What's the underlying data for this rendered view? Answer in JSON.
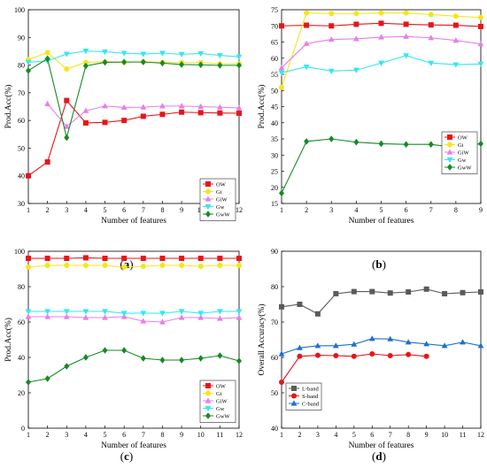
{
  "chart_data": [
    {
      "panel": "a",
      "type": "line",
      "xlabel": "Number of features",
      "ylabel": "Prod.Acc(%)",
      "xlim": [
        1,
        12
      ],
      "ylim": [
        30,
        100
      ],
      "xticks": [
        1,
        2,
        3,
        4,
        5,
        6,
        7,
        8,
        9,
        10,
        11,
        12
      ],
      "yticks": [
        30,
        40,
        50,
        60,
        70,
        80,
        90,
        100
      ],
      "grid": false,
      "legend_position": "bottom-right",
      "x": [
        1,
        2,
        3,
        4,
        5,
        6,
        7,
        8,
        9,
        10,
        11,
        12
      ],
      "series": [
        {
          "name": "OW",
          "color": "#e8141b",
          "marker": "square",
          "values": [
            40.0,
            45.0,
            67.2,
            59.1,
            59.3,
            60.0,
            61.5,
            62.2,
            63.0,
            62.8,
            62.7,
            62.6
          ]
        },
        {
          "name": "Gi",
          "color": "#f5e61b",
          "marker": "circle",
          "values": [
            82.0,
            84.5,
            78.6,
            81.0,
            81.2,
            81.0,
            81.2,
            81.0,
            80.9,
            80.9,
            80.5,
            80.5
          ]
        },
        {
          "name": "GiW",
          "color": "#e67fe8",
          "marker": "triangle-up",
          "values": [
            null,
            66.0,
            57.8,
            63.5,
            65.2,
            64.7,
            64.8,
            65.2,
            65.2,
            65.0,
            64.8,
            64.5
          ]
        },
        {
          "name": "Gw",
          "color": "#33e7f0",
          "marker": "triangle-down",
          "values": [
            81.0,
            81.5,
            84.0,
            85.1,
            84.8,
            84.3,
            84.0,
            84.3,
            83.9,
            84.2,
            83.5,
            83.0
          ]
        },
        {
          "name": "GwW",
          "color": "#158a23",
          "marker": "diamond",
          "values": [
            78.0,
            82.3,
            53.8,
            79.7,
            81.0,
            81.1,
            81.1,
            80.7,
            80.2,
            80.1,
            79.9,
            79.9
          ]
        }
      ]
    },
    {
      "panel": "b",
      "type": "line",
      "xlabel": "Number of features",
      "ylabel": "Prod.Acc(%)",
      "xlim": [
        1,
        9
      ],
      "ylim": [
        15,
        75
      ],
      "xticks": [
        1,
        2,
        3,
        4,
        5,
        6,
        7,
        8,
        9
      ],
      "yticks": [
        15,
        20,
        25,
        30,
        35,
        40,
        45,
        50,
        55,
        60,
        65,
        70,
        75
      ],
      "grid": false,
      "legend_position": "right",
      "x": [
        1,
        2,
        3,
        4,
        5,
        6,
        7,
        8,
        9
      ],
      "series": [
        {
          "name": "OW",
          "color": "#e8141b",
          "marker": "square",
          "values": [
            70.0,
            70.2,
            70.0,
            70.5,
            70.8,
            70.5,
            70.3,
            70.2,
            69.8
          ]
        },
        {
          "name": "Gi",
          "color": "#f5e61b",
          "marker": "circle",
          "values": [
            51.0,
            74.0,
            73.8,
            73.8,
            74.0,
            74.0,
            73.5,
            73.0,
            72.6
          ]
        },
        {
          "name": "GiW",
          "color": "#e67fe8",
          "marker": "triangle-up",
          "values": [
            57.0,
            64.5,
            65.8,
            66.0,
            66.5,
            66.7,
            66.3,
            65.5,
            64.4
          ]
        },
        {
          "name": "Gw",
          "color": "#33e7f0",
          "marker": "triangle-down",
          "values": [
            55.5,
            57.3,
            56.0,
            56.3,
            58.5,
            60.8,
            58.5,
            58.0,
            58.2
          ]
        },
        {
          "name": "GwW",
          "color": "#158a23",
          "marker": "diamond",
          "values": [
            18.2,
            34.2,
            35.0,
            34.0,
            33.5,
            33.3,
            33.3,
            32.3,
            33.5
          ]
        }
      ]
    },
    {
      "panel": "c",
      "type": "line",
      "xlabel": "Number of features",
      "ylabel": "Prod.Acc(%)",
      "xlim": [
        1,
        12
      ],
      "ylim": [
        0,
        100
      ],
      "xticks": [
        1,
        2,
        3,
        4,
        5,
        6,
        7,
        8,
        9,
        10,
        11,
        12
      ],
      "yticks": [
        0,
        20,
        40,
        60,
        80,
        100
      ],
      "grid": false,
      "legend_position": "right",
      "x": [
        1,
        2,
        3,
        4,
        5,
        6,
        7,
        8,
        9,
        10,
        11,
        12
      ],
      "series": [
        {
          "name": "OW",
          "color": "#e8141b",
          "marker": "square",
          "values": [
            96.0,
            96.0,
            96.0,
            96.3,
            96.0,
            96.0,
            96.0,
            96.0,
            96.0,
            96.0,
            96.0,
            96.0
          ]
        },
        {
          "name": "Gi",
          "color": "#f5e61b",
          "marker": "circle",
          "values": [
            91.0,
            92.0,
            92.0,
            92.0,
            92.0,
            91.0,
            91.5,
            92.0,
            92.0,
            91.5,
            92.0,
            92.0
          ]
        },
        {
          "name": "GiW",
          "color": "#e67fe8",
          "marker": "triangle-up",
          "values": [
            63.0,
            63.0,
            63.0,
            62.5,
            62.5,
            63.0,
            60.5,
            60.0,
            62.5,
            62.5,
            62.0,
            62.5
          ]
        },
        {
          "name": "Gw",
          "color": "#33e7f0",
          "marker": "triangle-down",
          "values": [
            66.0,
            66.0,
            66.0,
            66.0,
            66.0,
            65.0,
            65.0,
            65.0,
            66.0,
            65.0,
            66.0,
            66.0
          ]
        },
        {
          "name": "GwW",
          "color": "#158a23",
          "marker": "diamond",
          "values": [
            26.0,
            28.0,
            35.0,
            40.0,
            44.0,
            44.0,
            39.5,
            38.5,
            38.5,
            39.5,
            41.0,
            38.0
          ]
        }
      ]
    },
    {
      "panel": "d",
      "type": "line",
      "xlabel": "Number of features",
      "ylabel": "Overall Accuracy(%)",
      "xlim": [
        1,
        12
      ],
      "ylim": [
        40,
        90
      ],
      "xticks": [
        1,
        2,
        3,
        4,
        5,
        6,
        7,
        8,
        9,
        10,
        11,
        12
      ],
      "yticks": [
        40,
        50,
        60,
        70,
        80,
        90
      ],
      "grid": false,
      "legend_position": "bottom-left",
      "x": [
        1,
        2,
        3,
        4,
        5,
        6,
        7,
        8,
        9,
        10,
        11,
        12
      ],
      "series": [
        {
          "name": "L-band",
          "color": "#5a5a5a",
          "marker": "square",
          "values": [
            74.3,
            75.0,
            72.3,
            78.0,
            78.6,
            78.6,
            78.2,
            78.5,
            79.3,
            78.0,
            78.3,
            78.5
          ]
        },
        {
          "name": "S-band",
          "color": "#e8141b",
          "marker": "circle",
          "values": [
            53.0,
            60.3,
            60.6,
            60.5,
            60.3,
            61.0,
            60.5,
            60.8,
            60.3,
            null,
            null,
            null
          ]
        },
        {
          "name": "C-band",
          "color": "#1f6fd1",
          "marker": "triangle-up",
          "values": [
            61.0,
            62.7,
            63.3,
            63.3,
            63.7,
            65.3,
            65.2,
            64.3,
            63.8,
            63.3,
            64.3,
            63.3
          ]
        }
      ]
    }
  ],
  "panel_labels": [
    "(a)",
    "(b)",
    "(c)",
    "(d)"
  ]
}
